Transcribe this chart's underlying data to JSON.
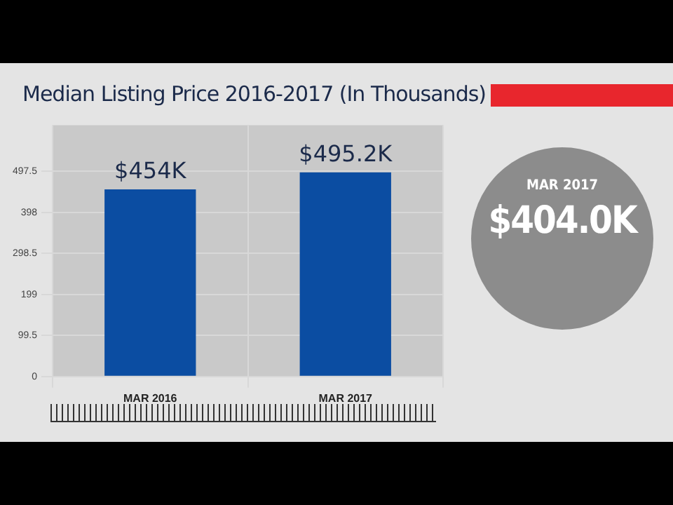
{
  "chart_data": [
    {
      "type": "bar",
      "title": "Median Listing Price 2016-2017 (In Thousands)",
      "categories": [
        "MAR 2016",
        "MAR 2017"
      ],
      "values": [
        454,
        495.2
      ],
      "value_labels": [
        "$454K",
        "$495.2K"
      ],
      "color": "#0b4da2",
      "ylim": [
        0,
        610
      ],
      "yticks": [
        0,
        99.5,
        199,
        298.5,
        398,
        497.5
      ],
      "grid": true,
      "legend": false
    },
    {
      "type": "other",
      "title": "MAR 2017",
      "annotations": [
        "$404.0K"
      ]
    }
  ]
}
